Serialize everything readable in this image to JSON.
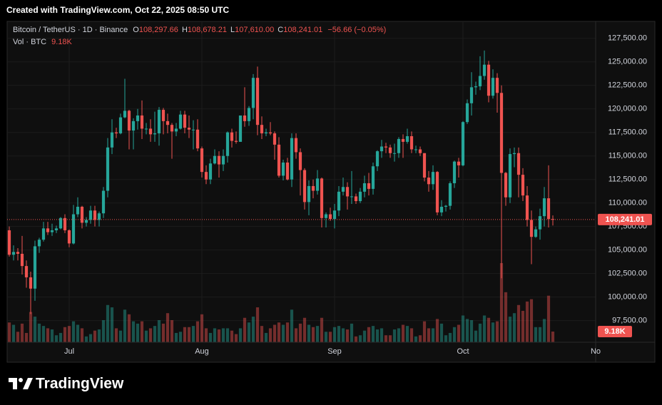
{
  "header": {
    "created": "Created with TradingView.com, Oct 22, 2025 08:50 UTC",
    "symbol": "Bitcoin / TetherUS · 1D · Binance",
    "ohlc": [
      {
        "key": "O",
        "value": "108,297.66"
      },
      {
        "key": "H",
        "value": "108,678.21"
      },
      {
        "key": "L",
        "value": "107,610.00"
      },
      {
        "key": "C",
        "value": "108,241.01"
      }
    ],
    "change": "−56.66 (−0.05%)",
    "volume_title": "Vol · BTC",
    "volume_value": "9.18K"
  },
  "footer": {
    "brand": "TradingView"
  },
  "chart_data": {
    "type": "candlestick",
    "colors": {
      "up": "#26a69a",
      "down": "#ef5350"
    },
    "grid": true,
    "xlim": [
      -0.5,
      137
    ],
    "xticks": [
      {
        "value": 14,
        "label": "Jul"
      },
      {
        "value": 45,
        "label": "Aug"
      },
      {
        "value": 76,
        "label": "Sep"
      },
      {
        "value": 106,
        "label": "Oct"
      },
      {
        "value": 137,
        "label": "No"
      }
    ],
    "ylim": [
      95200,
      129300
    ],
    "yticks": [
      {
        "value": 97500,
        "label": "97,500.00"
      },
      {
        "value": 100000,
        "label": "100,000.00"
      },
      {
        "value": 102500,
        "label": "102,500.00"
      },
      {
        "value": 105000,
        "label": "105,000.00"
      },
      {
        "value": 107500,
        "label": "107,500.00"
      },
      {
        "value": 110000,
        "label": "110,000.00"
      },
      {
        "value": 112500,
        "label": "112,500.00"
      },
      {
        "value": 115000,
        "label": "115,000.00"
      },
      {
        "value": 117500,
        "label": "117,500.00"
      },
      {
        "value": 120000,
        "label": "120,000.00"
      },
      {
        "value": 122500,
        "label": "122,500.00"
      },
      {
        "value": 125000,
        "label": "125,000.00"
      },
      {
        "value": 127500,
        "label": "127,500.00"
      }
    ],
    "last_price_label": "108,241.01",
    "volume_value_label": "9.18K",
    "open": [
      107100,
      104500,
      104800,
      104600,
      103300,
      102100,
      100900,
      105400,
      106100,
      107300,
      106900,
      107100,
      107300,
      108400,
      107100,
      105700,
      108800,
      109600,
      107900,
      108200,
      109200,
      108200,
      108900,
      111300,
      115900,
      117500,
      117400,
      119100,
      119800,
      117700,
      118700,
      119300,
      117900,
      117900,
      117300,
      117400,
      119900,
      118700,
      118300,
      117600,
      117900,
      119400,
      118000,
      117800,
      117800,
      115800,
      113300,
      112500,
      114200,
      115000,
      114100,
      115000,
      117500,
      116600,
      116500,
      119300,
      118700,
      120100,
      123300,
      118300,
      117400,
      117500,
      117400,
      116200,
      112900,
      114300,
      112500,
      116900,
      115400,
      113500,
      110100,
      111800,
      111300,
      112600,
      108400,
      108800,
      108300,
      109200,
      111200,
      111700,
      110700,
      110700,
      110200,
      111200,
      112100,
      111500,
      113900,
      115500,
      116000,
      115900,
      115300,
      115300,
      116800,
      116500,
      117100,
      115700,
      115700,
      115300,
      112700,
      112000,
      113300,
      109000,
      109600,
      109700,
      112100,
      114400,
      114000,
      118600,
      120600,
      122300,
      122400,
      123500,
      124700,
      121400,
      123300,
      121700,
      113200,
      110600,
      115200,
      115300,
      113000,
      110800,
      108200,
      106400,
      107200,
      108600,
      110500,
      108297.66
    ],
    "high": [
      107500,
      105500,
      105200,
      106500,
      103900,
      102700,
      106000,
      106300,
      108000,
      108000,
      107800,
      107600,
      108500,
      108800,
      107200,
      109800,
      110600,
      109700,
      108500,
      109700,
      109700,
      109100,
      111700,
      116900,
      118900,
      118000,
      119500,
      123200,
      119900,
      119000,
      120000,
      120900,
      118500,
      118900,
      119700,
      120200,
      120100,
      119500,
      118500,
      118500,
      119800,
      119800,
      119300,
      118800,
      118900,
      116000,
      114000,
      114700,
      115700,
      115500,
      115700,
      117600,
      117900,
      117600,
      119300,
      122300,
      120300,
      123700,
      124500,
      119200,
      117900,
      118600,
      117600,
      117000,
      114600,
      114800,
      117400,
      117400,
      115800,
      113700,
      112400,
      112500,
      113500,
      112700,
      109000,
      109500,
      109900,
      111800,
      112700,
      112200,
      113400,
      111000,
      111600,
      112900,
      113200,
      114300,
      115600,
      116700,
      116400,
      116200,
      116300,
      117000,
      117300,
      117900,
      117600,
      116100,
      116000,
      115300,
      113400,
      114000,
      113400,
      110300,
      109800,
      112300,
      114500,
      114800,
      118700,
      121000,
      123900,
      122900,
      125600,
      126200,
      125100,
      124200,
      123800,
      122500,
      113300,
      115800,
      115900,
      115900,
      113700,
      111800,
      109200,
      107500,
      109400,
      111700,
      114000,
      108678.21
    ],
    "low": [
      104300,
      103900,
      103900,
      102400,
      101000,
      98200,
      99600,
      104700,
      105900,
      106600,
      106500,
      106800,
      107200,
      106800,
      105300,
      105600,
      108500,
      107300,
      107500,
      107800,
      107500,
      107500,
      108400,
      110600,
      115200,
      116900,
      117300,
      119000,
      115700,
      115700,
      117800,
      116800,
      117300,
      116500,
      116500,
      116100,
      117300,
      117400,
      114700,
      117100,
      117800,
      117400,
      116900,
      115700,
      115500,
      112700,
      112000,
      112000,
      114100,
      112700,
      113400,
      114300,
      115900,
      116300,
      116500,
      118100,
      118200,
      118900,
      117200,
      116800,
      117100,
      117200,
      114600,
      112700,
      112400,
      112400,
      111700,
      114700,
      110800,
      109300,
      108700,
      110500,
      110900,
      107400,
      107400,
      108100,
      107300,
      108600,
      110800,
      109300,
      109900,
      109900,
      110000,
      110600,
      110800,
      110900,
      113400,
      114800,
      115300,
      114800,
      114400,
      114800,
      114800,
      116300,
      115300,
      115300,
      115000,
      112300,
      111200,
      111400,
      108700,
      108600,
      109100,
      109300,
      111600,
      112700,
      113900,
      118400,
      119300,
      121500,
      122000,
      123100,
      120700,
      121100,
      119600,
      102000,
      109700,
      110000,
      113800,
      110600,
      110200,
      107500,
      103500,
      106300,
      106100,
      107500,
      107400,
      107610
    ],
    "close": [
      104500,
      104800,
      104600,
      103300,
      102100,
      100900,
      105400,
      106100,
      107300,
      106900,
      107100,
      107300,
      108400,
      107100,
      105700,
      108800,
      109600,
      107900,
      108200,
      109200,
      108200,
      108900,
      111300,
      115900,
      117500,
      117400,
      119100,
      119800,
      117700,
      118700,
      119300,
      117900,
      117900,
      117300,
      117400,
      119900,
      118700,
      118300,
      117600,
      117900,
      119400,
      118000,
      117800,
      117800,
      115800,
      113300,
      112500,
      114200,
      115000,
      114100,
      115000,
      117500,
      116600,
      116500,
      119300,
      118700,
      120100,
      123300,
      118300,
      117400,
      117500,
      117400,
      116200,
      112900,
      114300,
      112500,
      116900,
      115400,
      113500,
      110100,
      111800,
      111300,
      112600,
      108400,
      108800,
      108300,
      109200,
      111200,
      111700,
      110700,
      110700,
      110200,
      111200,
      112100,
      111500,
      113900,
      115500,
      116000,
      115900,
      115300,
      115300,
      116800,
      116500,
      117100,
      115700,
      115700,
      115300,
      112700,
      112000,
      113300,
      109000,
      109600,
      109700,
      112100,
      114400,
      114000,
      118600,
      120600,
      122300,
      122400,
      123500,
      124700,
      121400,
      123300,
      121700,
      113200,
      110600,
      115200,
      115300,
      113000,
      110800,
      108200,
      106400,
      107200,
      108600,
      110500,
      108300,
      108241.01
    ],
    "volume": [
      17000,
      15000,
      9000,
      16000,
      8000,
      26000,
      22000,
      16000,
      14000,
      12000,
      11000,
      6000,
      8000,
      13000,
      14000,
      18000,
      15000,
      12000,
      5000,
      7000,
      10000,
      11000,
      19000,
      32000,
      30000,
      12000,
      10000,
      28000,
      24000,
      18000,
      16000,
      18000,
      10000,
      12000,
      14000,
      19000,
      16000,
      25000,
      19000,
      8000,
      9000,
      13000,
      13000,
      14000,
      18000,
      24000,
      12000,
      8000,
      12000,
      11000,
      12000,
      12000,
      10000,
      7000,
      12000,
      21000,
      17000,
      22000,
      30000,
      14000,
      8000,
      12000,
      15000,
      17000,
      15000,
      17000,
      28000,
      12000,
      16000,
      21000,
      15000,
      13000,
      14000,
      21000,
      9000,
      9000,
      13000,
      14000,
      12000,
      11000,
      16000,
      5000,
      6000,
      10000,
      13000,
      14000,
      11000,
      12000,
      6000,
      6000,
      11000,
      12000,
      15000,
      14000,
      12000,
      5000,
      6000,
      18000,
      12000,
      12000,
      20000,
      16000,
      6000,
      8000,
      13000,
      15000,
      23000,
      20000,
      19000,
      10000,
      16000,
      23000,
      21000,
      17000,
      18000,
      68000,
      43000,
      22000,
      25000,
      32000,
      27000,
      35000,
      37000,
      13000,
      13000,
      20000,
      40000,
      9180
    ]
  }
}
